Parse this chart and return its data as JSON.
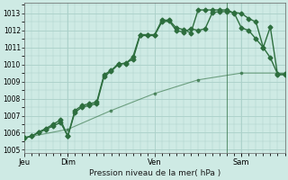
{
  "background_color": "#ceeae4",
  "grid_color": "#aacfc8",
  "line_color": "#2d6e3e",
  "title": "Pression niveau de la mer( hPa )",
  "ylim": [
    1004.8,
    1013.6
  ],
  "yticks": [
    1005,
    1006,
    1007,
    1008,
    1009,
    1010,
    1011,
    1012,
    1013
  ],
  "xtick_labels": [
    "Jeu",
    "Dim",
    "Ven",
    "Sam"
  ],
  "xtick_positions": [
    0.0,
    0.167,
    0.5,
    0.833
  ],
  "vline_pos": 0.778,
  "line1_x": [
    0.0,
    0.028,
    0.056,
    0.083,
    0.111,
    0.139,
    0.167,
    0.194,
    0.222,
    0.25,
    0.278,
    0.306,
    0.333,
    0.361,
    0.389,
    0.417,
    0.444,
    0.472,
    0.5,
    0.528,
    0.556,
    0.583,
    0.611,
    0.639,
    0.667,
    0.694,
    0.722,
    0.75,
    0.778,
    0.806,
    0.833,
    0.861,
    0.889,
    0.917,
    0.944,
    0.972,
    1.0
  ],
  "line1_y": [
    1005.7,
    1005.8,
    1006.0,
    1006.2,
    1006.4,
    1006.6,
    1005.8,
    1007.2,
    1007.5,
    1007.6,
    1007.7,
    1009.3,
    1009.6,
    1010.0,
    1010.1,
    1010.3,
    1011.7,
    1011.7,
    1011.7,
    1012.5,
    1012.55,
    1012.0,
    1011.9,
    1012.1,
    1012.0,
    1012.1,
    1013.05,
    1013.1,
    1013.1,
    1013.05,
    1013.0,
    1012.7,
    1012.5,
    1011.0,
    1012.2,
    1009.4,
    1009.4
  ],
  "line2_x": [
    0.0,
    0.028,
    0.056,
    0.083,
    0.111,
    0.139,
    0.167,
    0.194,
    0.222,
    0.25,
    0.278,
    0.306,
    0.333,
    0.361,
    0.389,
    0.417,
    0.444,
    0.472,
    0.5,
    0.528,
    0.556,
    0.583,
    0.611,
    0.639,
    0.667,
    0.694,
    0.722,
    0.75,
    0.778,
    0.806,
    0.833,
    0.861,
    0.889,
    0.917,
    0.944,
    0.972,
    1.0
  ],
  "line2_y": [
    1005.7,
    1005.8,
    1006.05,
    1006.25,
    1006.5,
    1006.75,
    1005.8,
    1007.3,
    1007.6,
    1007.7,
    1007.8,
    1009.4,
    1009.65,
    1010.05,
    1010.05,
    1010.45,
    1011.75,
    1011.75,
    1011.75,
    1012.6,
    1012.6,
    1012.15,
    1012.05,
    1011.85,
    1013.2,
    1013.2,
    1013.2,
    1013.2,
    1013.2,
    1013.0,
    1012.15,
    1012.0,
    1011.5,
    1011.0,
    1010.4,
    1009.45,
    1009.45
  ],
  "line3_x": [
    0.0,
    0.167,
    0.333,
    0.5,
    0.667,
    0.833,
    1.0
  ],
  "line3_y": [
    1005.7,
    1006.2,
    1007.3,
    1008.3,
    1009.1,
    1009.5,
    1009.5
  ],
  "marker_size": 2.5,
  "linewidth": 1.0
}
